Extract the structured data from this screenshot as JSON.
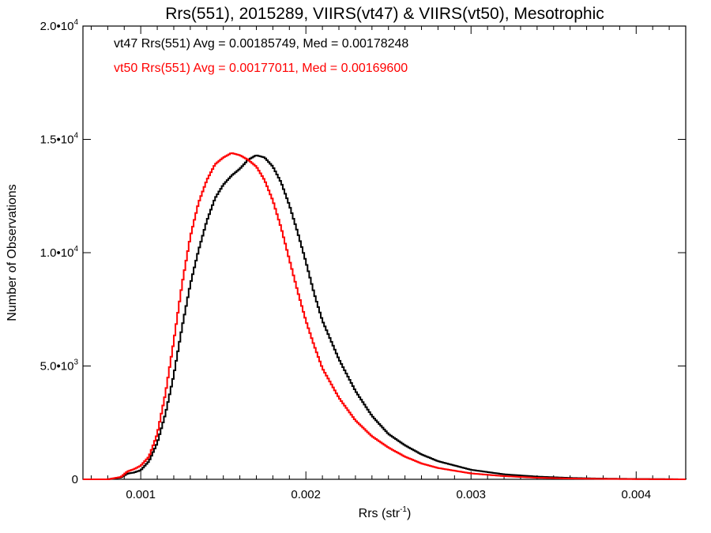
{
  "chart_data": {
    "type": "line",
    "style": "step-histogram",
    "title": "Rrs(551), 2015289, VIIRS(vt47) & VIIRS(vt50), Mesotrophic",
    "xlabel_main": "Rrs (str",
    "xlabel_sup": "-1",
    "xlabel_close": ")",
    "ylabel": "Number of Observations",
    "xlim": [
      0.00065,
      0.0043
    ],
    "ylim": [
      0,
      20000
    ],
    "x_ticks": [
      {
        "value": 0.001,
        "label": "0.001"
      },
      {
        "value": 0.002,
        "label": "0.002"
      },
      {
        "value": 0.003,
        "label": "0.003"
      },
      {
        "value": 0.004,
        "label": "0.004"
      }
    ],
    "y_ticks": [
      {
        "value": 0,
        "label": "0",
        "exp": ""
      },
      {
        "value": 5000,
        "label": "5.0•10",
        "exp": "3"
      },
      {
        "value": 10000,
        "label": "1.0•10",
        "exp": "4"
      },
      {
        "value": 15000,
        "label": "1.5•10",
        "exp": "4"
      },
      {
        "value": 20000,
        "label": "2.0•10",
        "exp": "4"
      }
    ],
    "annotations": [
      "vt47 Rrs(551) Avg = 0.00185749, Med = 0.00178248",
      "vt50 Rrs(551) Avg = 0.00177011, Med = 0.00169600"
    ],
    "grid": false,
    "series": [
      {
        "name": "vt47",
        "color": "#000000",
        "x": [
          0.00065,
          0.0008,
          0.00088,
          0.00092,
          0.00096,
          0.001,
          0.00105,
          0.0011,
          0.00115,
          0.0012,
          0.00125,
          0.0013,
          0.00135,
          0.0014,
          0.00145,
          0.0015,
          0.00155,
          0.0016,
          0.00165,
          0.0017,
          0.00175,
          0.0018,
          0.00185,
          0.0019,
          0.00195,
          0.002,
          0.00205,
          0.0021,
          0.0022,
          0.0023,
          0.0024,
          0.0025,
          0.0026,
          0.0027,
          0.0028,
          0.003,
          0.0032,
          0.0034,
          0.0036,
          0.0038,
          0.004,
          0.0042,
          0.0043
        ],
        "values": [
          0,
          0,
          80,
          250,
          300,
          400,
          800,
          1600,
          2900,
          4600,
          6700,
          8600,
          10100,
          11400,
          12400,
          13000,
          13400,
          13700,
          14100,
          14300,
          14200,
          13800,
          13100,
          12100,
          10900,
          9600,
          8200,
          7000,
          5300,
          3900,
          2800,
          2000,
          1500,
          1100,
          800,
          420,
          220,
          120,
          60,
          30,
          15,
          5,
          0
        ]
      },
      {
        "name": "vt50",
        "color": "#ff0000",
        "x": [
          0.00065,
          0.0008,
          0.00088,
          0.00092,
          0.00096,
          0.001,
          0.00105,
          0.0011,
          0.00115,
          0.0012,
          0.00125,
          0.0013,
          0.00135,
          0.0014,
          0.00145,
          0.0015,
          0.00155,
          0.0016,
          0.00165,
          0.0017,
          0.00175,
          0.0018,
          0.00185,
          0.0019,
          0.00195,
          0.002,
          0.00205,
          0.0021,
          0.0022,
          0.0023,
          0.0024,
          0.0025,
          0.0026,
          0.0027,
          0.0028,
          0.003,
          0.0032,
          0.0034,
          0.0036,
          0.0038,
          0.004,
          0.0042,
          0.0043
        ],
        "values": [
          0,
          0,
          100,
          350,
          450,
          600,
          1000,
          2000,
          3800,
          6100,
          8600,
          10700,
          12200,
          13200,
          13900,
          14200,
          14400,
          14300,
          14100,
          13800,
          13200,
          12300,
          11100,
          9700,
          8300,
          7000,
          5900,
          4900,
          3600,
          2600,
          1900,
          1400,
          1000,
          700,
          500,
          260,
          140,
          70,
          35,
          20,
          10,
          3,
          0
        ]
      }
    ]
  }
}
